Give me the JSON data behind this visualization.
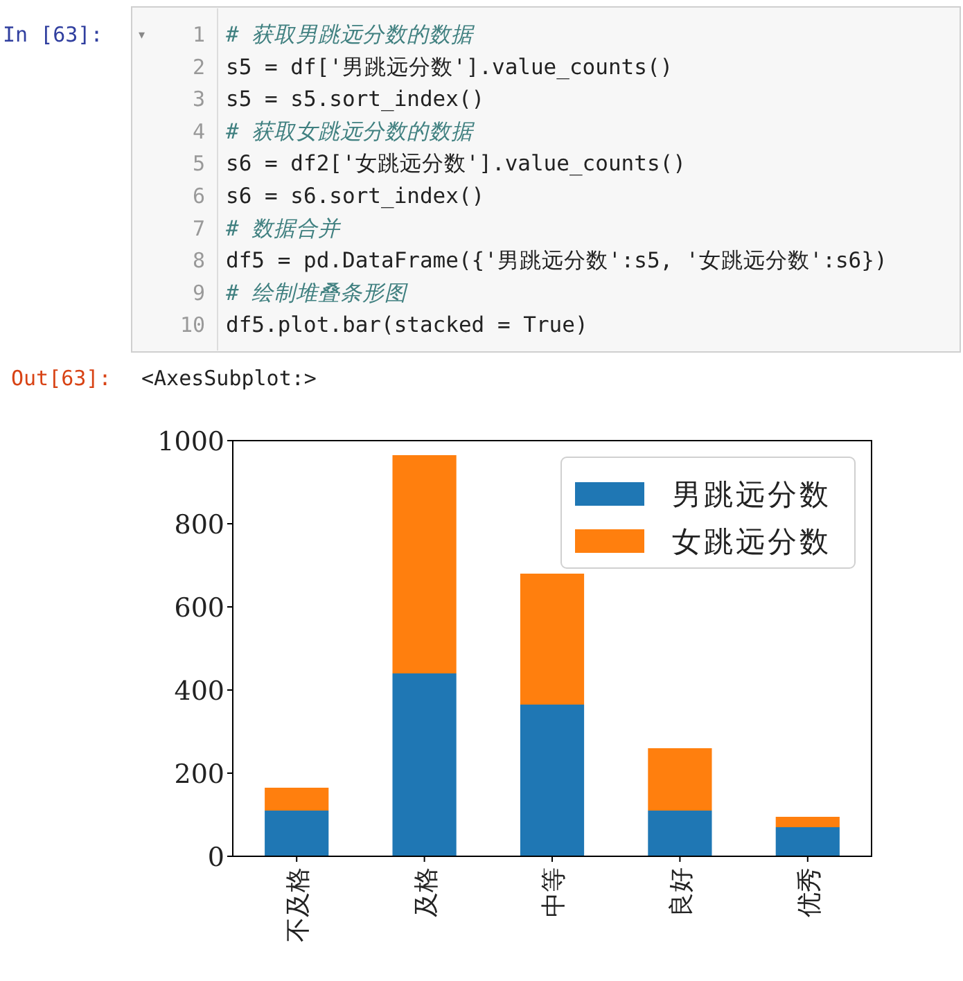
{
  "chart_data": {
    "type": "bar",
    "stacked": true,
    "categories": [
      "不及格",
      "及格",
      "中等",
      "良好",
      "优秀"
    ],
    "series": [
      {
        "name": "男跳远分数",
        "color": "#1f77b4",
        "values": [
          110,
          440,
          365,
          110,
          70
        ]
      },
      {
        "name": "女跳远分数",
        "color": "#ff7f0e",
        "values": [
          55,
          525,
          315,
          150,
          25
        ]
      }
    ],
    "ylim": [
      0,
      1000
    ],
    "yticks": [
      0,
      200,
      400,
      600,
      800,
      1000
    ],
    "legend": "top right",
    "annotations": [
      "In  [63]:",
      "▾",
      "1",
      "2",
      "3",
      "4",
      "5",
      "6",
      "7",
      "8",
      "9",
      "10",
      "# 获取男跳远分数的数据",
      "s5 = df['男跳远分数'].value_counts()",
      "s5 = s5.sort_index()",
      "# 获取女跳远分数的数据",
      "s6 = df2['女跳远分数'].value_counts()",
      "s6 = s6.sort_index()",
      "# 数据合并",
      "df5 = pd.DataFrame({'男跳远分数':s5, '女跳远分数':s6})",
      "# 绘制堆叠条形图",
      "df5.plot.bar(stacked = True)",
      "Out[63]:",
      "<AxesSubplot:>"
    ]
  }
}
